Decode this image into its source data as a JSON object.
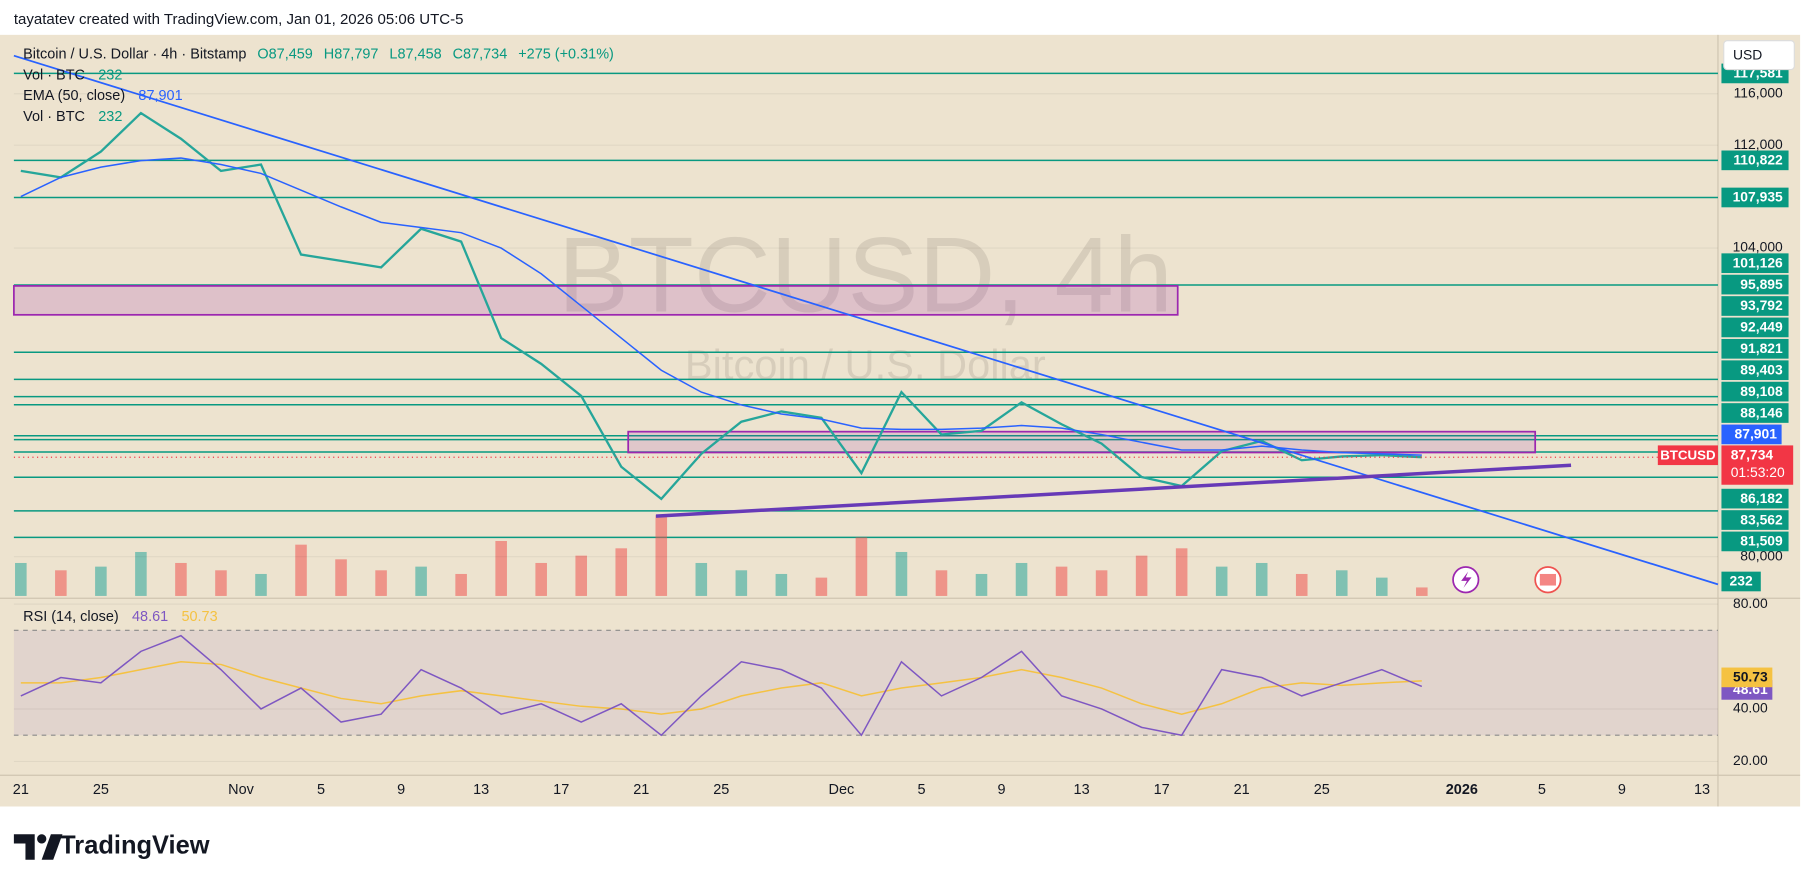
{
  "header": {
    "credit": "tayatatev created with TradingView.com, Jan 01, 2026 05:06 UTC-5"
  },
  "chart_data": {
    "type": "line",
    "symbol_line": "Bitcoin / U.S. Dollar · 4h · Bitstamp",
    "ohlc": [
      "O87,459",
      "H87,797",
      "L87,458",
      "C87,734"
    ],
    "change": "+275 (+0.31%)",
    "watermark_title": "BTCUSD, 4h",
    "watermark_subtitle": "Bitcoin / U.S. Dollar",
    "currency": "USD",
    "x": [
      "Oct 21",
      "Oct 23",
      "Oct 25",
      "Oct 27",
      "Oct 29",
      "Oct 31",
      "Nov 2",
      "Nov 4",
      "Nov 6",
      "Nov 8",
      "Nov 10",
      "Nov 12",
      "Nov 14",
      "Nov 16",
      "Nov 18",
      "Nov 20",
      "Nov 22",
      "Nov 24",
      "Nov 26",
      "Nov 28",
      "Nov 30",
      "Dec 2",
      "Dec 4",
      "Dec 6",
      "Dec 8",
      "Dec 10",
      "Dec 12",
      "Dec 14",
      "Dec 16",
      "Dec 18",
      "Dec 20",
      "Dec 22",
      "Dec 24",
      "Dec 26",
      "Dec 28",
      "Dec 30"
    ],
    "xtick_labels": [
      "21",
      "25",
      "Nov",
      "5",
      "9",
      "13",
      "17",
      "21",
      "25",
      "Dec",
      "5",
      "9",
      "13",
      "17",
      "21",
      "25",
      "2026",
      "5",
      "9",
      "13"
    ],
    "ylim": [
      76950,
      120580
    ],
    "yticks": [
      {
        "value": 116000,
        "label": "116,000"
      },
      {
        "value": 112000,
        "label": "112,000"
      },
      {
        "value": 104000,
        "label": "104,000"
      },
      {
        "value": 80000,
        "label": "80,000"
      }
    ],
    "series": [
      {
        "name": "BTCUSD",
        "color": "#26a69a",
        "values": [
          110000,
          109500,
          111500,
          114500,
          112500,
          110000,
          110500,
          103500,
          103000,
          102500,
          105500,
          104500,
          97000,
          95000,
          92500,
          87000,
          84500,
          88000,
          90500,
          91300,
          90800,
          86500,
          92800,
          89500,
          89800,
          92000,
          90300,
          88800,
          86200,
          85500,
          88200,
          89000,
          87500,
          87800,
          87900,
          87734
        ],
        "value_label": "87,734",
        "countdown": "01:53:20",
        "label_color": "#f23645"
      },
      {
        "name": "EMA (50, close)",
        "color": "#2962ff",
        "values": [
          108000,
          109500,
          110300,
          110800,
          111000,
          110500,
          109800,
          108500,
          107200,
          106000,
          105600,
          105200,
          104000,
          102000,
          99500,
          97000,
          94500,
          92800,
          91800,
          91100,
          90700,
          90000,
          89900,
          89900,
          90000,
          90200,
          90000,
          89500,
          88900,
          88300,
          88300,
          88600,
          88300,
          88100,
          88000,
          87901
        ],
        "value_label": "87,901"
      }
    ],
    "levels": [
      {
        "value": 117581,
        "label": "117,581"
      },
      {
        "value": 110822,
        "label": "110,822"
      },
      {
        "value": 107935,
        "label": "107,935"
      },
      {
        "value": 101126,
        "label": "101,126"
      },
      {
        "value": 95895,
        "label": "95,895"
      },
      {
        "value": 93792,
        "label": "93,792"
      },
      {
        "value": 92449,
        "label": "92,449"
      },
      {
        "value": 91821,
        "label": "91,821"
      },
      {
        "value": 89403,
        "label": "89,403"
      },
      {
        "value": 89108,
        "label": "89,108"
      },
      {
        "value": 88146,
        "label": "88,146"
      },
      {
        "value": 86182,
        "label": "86,182"
      },
      {
        "value": 83562,
        "label": "83,562"
      },
      {
        "value": 81509,
        "label": "81,509"
      }
    ],
    "level_color": "#089981",
    "volume": {
      "name": "Vol · BTC",
      "values": [
        900,
        700,
        800,
        1200,
        900,
        700,
        600,
        1400,
        1000,
        700,
        800,
        600,
        1500,
        900,
        1100,
        1300,
        2200,
        900,
        700,
        600,
        500,
        1600,
        1200,
        700,
        600,
        900,
        800,
        700,
        1100,
        1300,
        800,
        900,
        600,
        700,
        500,
        232
      ],
      "value_label": "232",
      "vlim": [
        0,
        3000
      ],
      "up_color": "#26a69a",
      "down_color": "#ef5350"
    },
    "rsi": {
      "name": "RSI (14, close)",
      "ylim": [
        15.6,
        81.8
      ],
      "yticks": [
        {
          "value": 80,
          "label": "80.00"
        },
        {
          "value": 40,
          "label": "40.00"
        },
        {
          "value": 20,
          "label": "20.00"
        }
      ],
      "band": [
        30,
        70
      ],
      "series": [
        {
          "color": "#7e57c2",
          "values": [
            45,
            52,
            50,
            62,
            68,
            55,
            40,
            48,
            35,
            38,
            55,
            48,
            38,
            42,
            35,
            42,
            30,
            45,
            58,
            55,
            48,
            30,
            58,
            45,
            52,
            62,
            45,
            40,
            33,
            30,
            55,
            52,
            45,
            50,
            55,
            48.61
          ],
          "value_label": "48.61"
        },
        {
          "color": "#f5c242",
          "values": [
            50,
            50,
            52,
            55,
            58,
            57,
            52,
            48,
            44,
            42,
            45,
            47,
            45,
            43,
            41,
            40,
            38,
            40,
            45,
            48,
            50,
            45,
            48,
            50,
            52,
            55,
            52,
            48,
            42,
            38,
            42,
            48,
            50,
            49,
            50,
            50.73
          ],
          "value_label": "50.73"
        }
      ]
    }
  },
  "footer": {
    "brand": "TradingView"
  }
}
